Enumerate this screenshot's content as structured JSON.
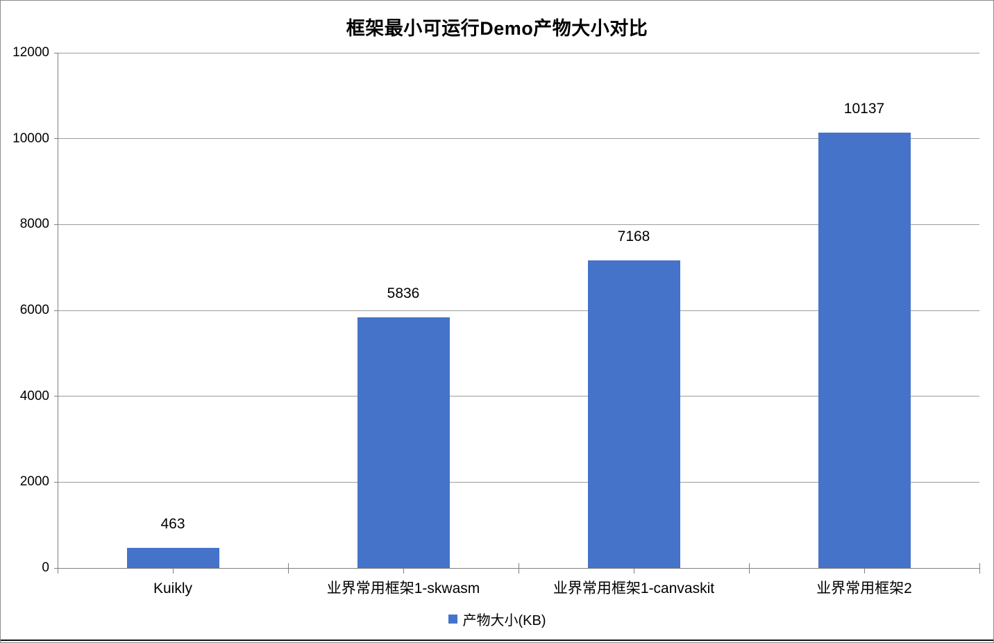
{
  "chart_data": {
    "type": "bar",
    "title": "框架最小可运行Demo产物大小对比",
    "categories": [
      "Kuikly",
      "业界常用框架1-skwasm",
      "业界常用框架1-canvaskit",
      "业界常用框架2"
    ],
    "series": [
      {
        "name": "产物大小(KB)",
        "values": [
          463,
          5836,
          7168,
          10137
        ]
      }
    ],
    "xlabel": "",
    "ylabel": "",
    "ylim": [
      0,
      12000
    ],
    "yticks": [
      0,
      2000,
      4000,
      6000,
      8000,
      10000,
      12000
    ],
    "grid": true,
    "show_data_labels": true,
    "legend_position": "bottom",
    "colors": {
      "bar": "#4573C9",
      "gridline": "#9B9B9B",
      "axis": "#7F7F7F",
      "text": "#000000"
    }
  }
}
